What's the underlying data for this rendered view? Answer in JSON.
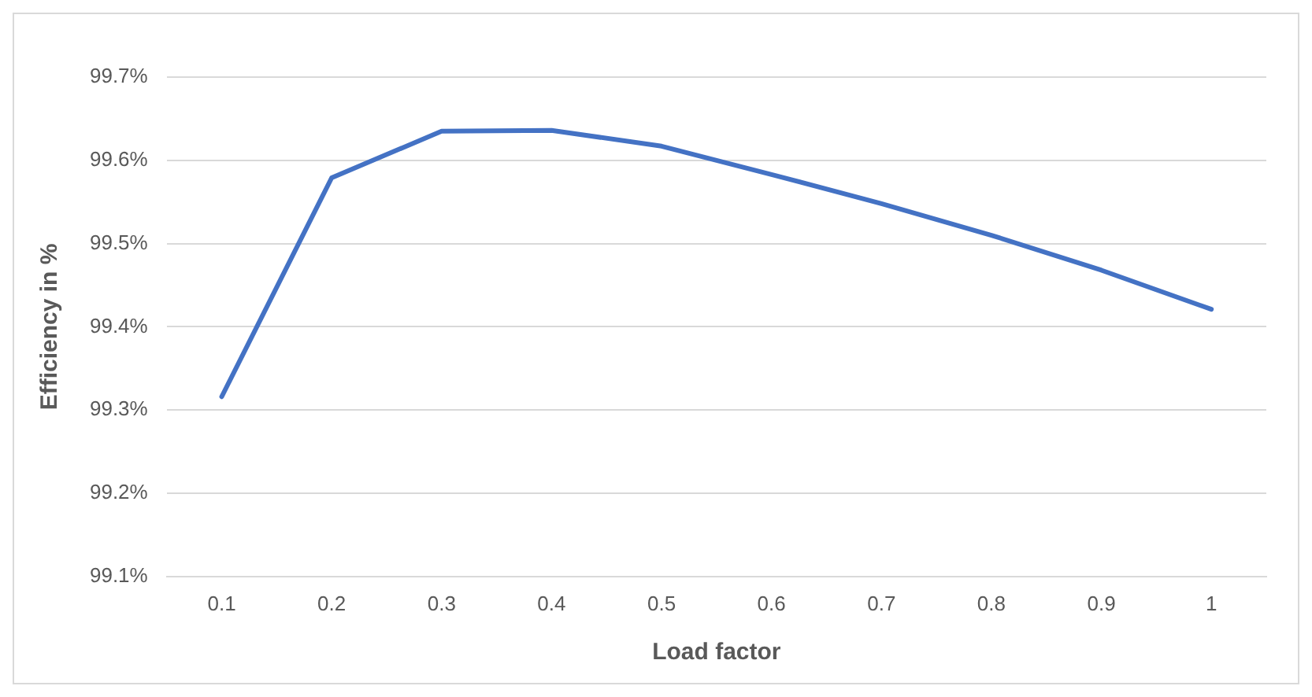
{
  "chart_data": {
    "type": "line",
    "xlabel": "Load factor",
    "ylabel": "Efficiency in %",
    "categories": [
      "0.1",
      "0.2",
      "0.3",
      "0.4",
      "0.5",
      "0.6",
      "0.7",
      "0.8",
      "0.9",
      "1"
    ],
    "series": [
      {
        "color": "#4472c4",
        "values": [
          99.316,
          99.579,
          99.635,
          99.636,
          99.617,
          99.583,
          99.548,
          99.51,
          99.468,
          99.421
        ]
      }
    ],
    "ylim": [
      99.1,
      99.7
    ],
    "yticks": [
      {
        "value": 99.1,
        "label": "99.1%"
      },
      {
        "value": 99.2,
        "label": "99.2%"
      },
      {
        "value": 99.3,
        "label": "99.3%"
      },
      {
        "value": 99.4,
        "label": "99.4%"
      },
      {
        "value": 99.5,
        "label": "99.5%"
      },
      {
        "value": 99.6,
        "label": "99.6%"
      },
      {
        "value": 99.7,
        "label": "99.7%"
      }
    ],
    "grid": "y",
    "legend": false,
    "marker": "none",
    "line_style": "solid"
  }
}
